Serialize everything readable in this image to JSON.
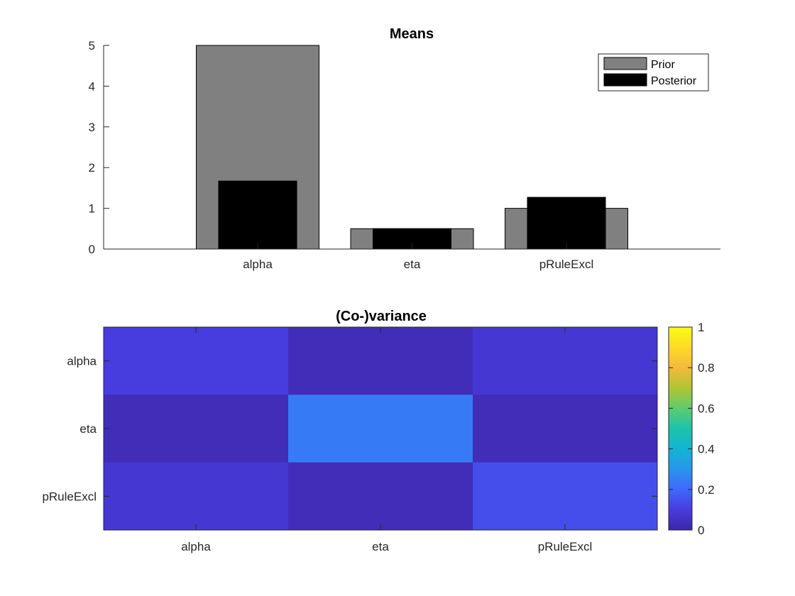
{
  "chart_data": [
    {
      "type": "bar",
      "title": "Means",
      "categories": [
        "alpha",
        "eta",
        "pRuleExcl"
      ],
      "series": [
        {
          "name": "Prior",
          "values": [
            5,
            0.5,
            1
          ],
          "color": "#808080"
        },
        {
          "name": "Posterior",
          "values": [
            1.67,
            0.5,
            1.27
          ],
          "color": "#000000"
        }
      ],
      "ylim": [
        0,
        5
      ],
      "yticks": [
        "0",
        "1",
        "2",
        "3",
        "4",
        "5"
      ],
      "legend": {
        "placement": "top-right"
      },
      "grid": false
    },
    {
      "type": "heatmap",
      "title": "(Co-)variance",
      "rows": [
        "alpha",
        "eta",
        "pRuleExcl"
      ],
      "columns": [
        "alpha",
        "eta",
        "pRuleExcl"
      ],
      "values": [
        [
          0.1,
          0.03,
          0.08
        ],
        [
          0.03,
          0.24,
          0.03
        ],
        [
          0.08,
          0.03,
          0.14
        ]
      ],
      "colormap": "parula",
      "clim": [
        0,
        1
      ],
      "colorbar_ticks": [
        "0",
        "0.2",
        "0.4",
        "0.6",
        "0.8",
        "1"
      ],
      "grid": false
    }
  ]
}
